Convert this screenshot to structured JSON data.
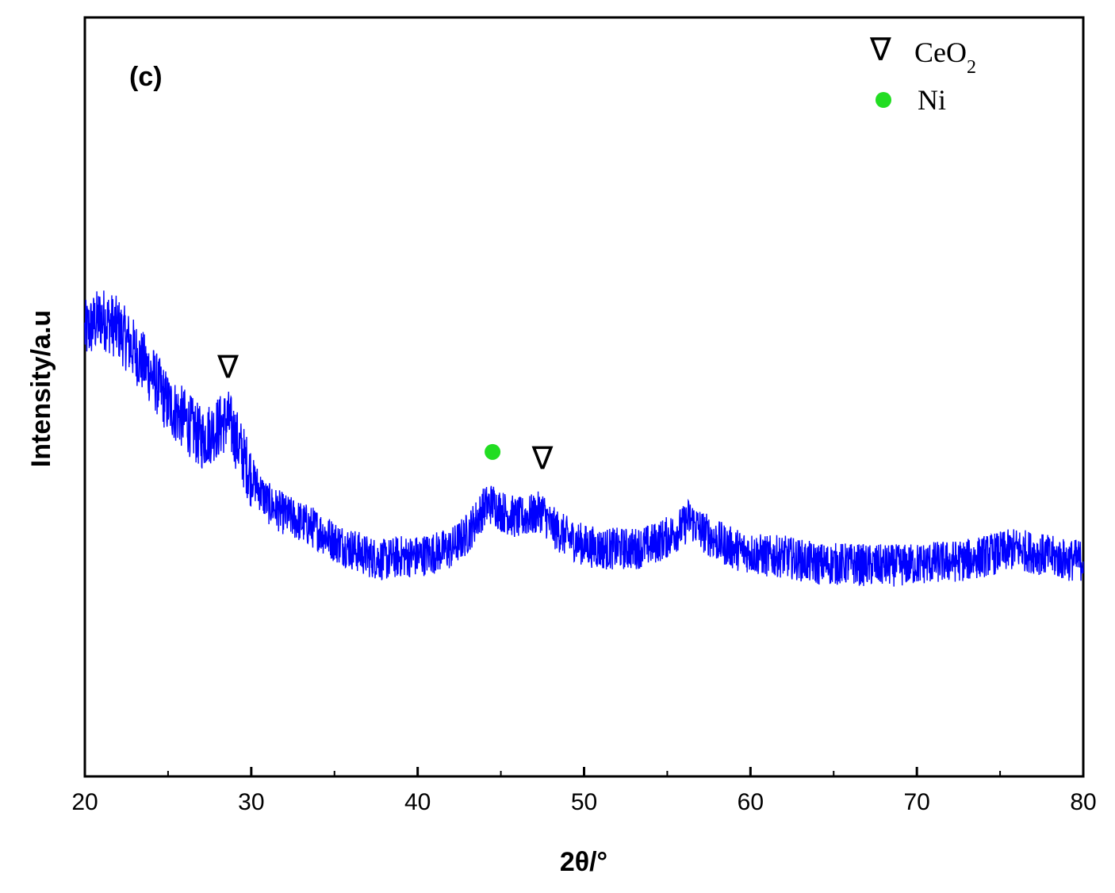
{
  "chart_data": {
    "type": "line",
    "panel_label": "(c)",
    "xlabel": "2θ/°",
    "ylabel": "Intensity/a.u",
    "xlim": [
      20,
      80
    ],
    "x_ticks": [
      20,
      30,
      40,
      50,
      60,
      70,
      80
    ],
    "y_ticks_shown": false,
    "line_color": "#0000ff",
    "grid": false,
    "legend_placement": "top-right",
    "legend": [
      {
        "symbol": "∇",
        "label": "CeO",
        "subscript": "2",
        "symbol_color": "#000000"
      },
      {
        "symbol": "●",
        "label": "Ni",
        "subscript": "",
        "symbol_color": "#22dd22"
      }
    ],
    "peak_markers": [
      {
        "phase": "CeO2",
        "symbol": "∇",
        "x": 28.6
      },
      {
        "phase": "Ni",
        "symbol": "●",
        "x": 44.5
      },
      {
        "phase": "CeO2",
        "symbol": "∇",
        "x": 47.5
      }
    ],
    "series": [
      {
        "x": [
          20,
          21,
          22,
          23,
          24,
          25,
          26,
          27,
          28,
          28.6,
          29,
          30,
          31,
          32,
          33,
          34,
          35,
          36,
          37,
          38,
          39,
          40,
          41,
          42,
          43,
          44,
          44.5,
          45,
          46,
          47,
          47.5,
          48,
          49,
          50,
          51,
          52,
          53,
          54,
          55,
          56,
          56.3,
          57,
          58,
          59,
          60,
          61,
          62,
          63,
          64,
          65,
          66,
          67,
          68,
          69,
          70,
          71,
          72,
          73,
          74,
          75,
          76,
          77,
          78,
          79,
          80
        ],
        "y": [
          0.585,
          0.605,
          0.59,
          0.56,
          0.53,
          0.49,
          0.47,
          0.445,
          0.46,
          0.47,
          0.45,
          0.395,
          0.36,
          0.345,
          0.335,
          0.325,
          0.31,
          0.3,
          0.29,
          0.285,
          0.29,
          0.29,
          0.295,
          0.3,
          0.32,
          0.355,
          0.36,
          0.35,
          0.34,
          0.345,
          0.35,
          0.33,
          0.315,
          0.305,
          0.3,
          0.3,
          0.3,
          0.305,
          0.315,
          0.33,
          0.34,
          0.325,
          0.31,
          0.3,
          0.295,
          0.29,
          0.29,
          0.285,
          0.28,
          0.28,
          0.28,
          0.278,
          0.278,
          0.278,
          0.28,
          0.282,
          0.283,
          0.285,
          0.29,
          0.295,
          0.3,
          0.295,
          0.29,
          0.285,
          0.285
        ],
        "noise_amplitude": 0.028
      }
    ]
  }
}
